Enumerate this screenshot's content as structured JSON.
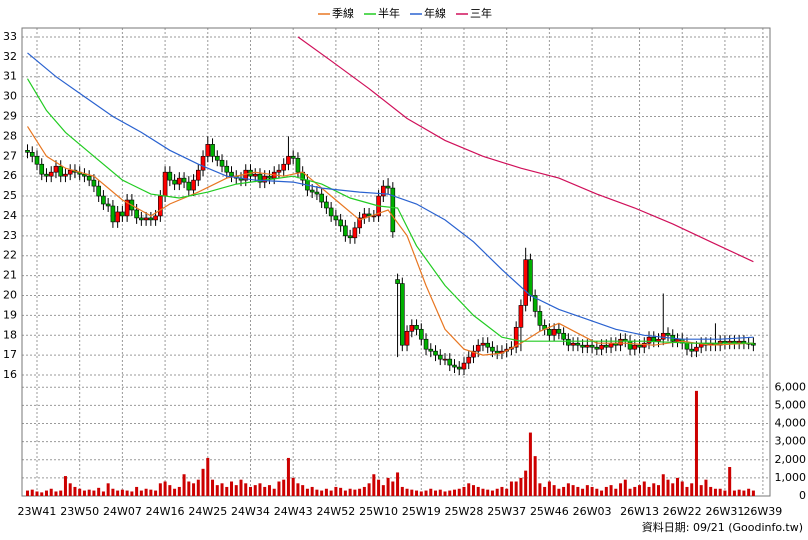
{
  "chart_data": {
    "type": "candlestick",
    "grid": true,
    "legend": "top",
    "annotation": "資料日期: 09/21  (Goodinfo.tw)",
    "xlim": [
      -1.16,
      156.5
    ],
    "xticks": [
      {
        "value": 2,
        "label": "23W41"
      },
      {
        "value": 11,
        "label": "23W50"
      },
      {
        "value": 20,
        "label": "24W07"
      },
      {
        "value": 29,
        "label": "24W16"
      },
      {
        "value": 38,
        "label": "24W25"
      },
      {
        "value": 47,
        "label": "24W34"
      },
      {
        "value": 56,
        "label": "24W43"
      },
      {
        "value": 65,
        "label": "24W52"
      },
      {
        "value": 74,
        "label": "25W10"
      },
      {
        "value": 83,
        "label": "25W19"
      },
      {
        "value": 92,
        "label": "25W28"
      },
      {
        "value": 101,
        "label": "25W37"
      },
      {
        "value": 110,
        "label": "25W46"
      },
      {
        "value": 119,
        "label": "26W03"
      },
      {
        "value": 129,
        "label": "26W13"
      },
      {
        "value": 138,
        "label": "26W22"
      },
      {
        "value": 147,
        "label": "26W31"
      },
      {
        "value": 155,
        "label": "26W39"
      }
    ],
    "ylim": [
      15.75,
      33.45
    ],
    "yticks": [
      16,
      17,
      18,
      19,
      20,
      21,
      22,
      23,
      24,
      25,
      26,
      27,
      28,
      29,
      30,
      31,
      32,
      33
    ],
    "y2lim": [
      0,
      6400
    ],
    "y2ticks": [
      0,
      {
        "value": 1000,
        "label": "1,000"
      },
      {
        "value": 2000,
        "label": "2,000"
      },
      {
        "value": 3000,
        "label": "3,000"
      },
      {
        "value": 4000,
        "label": "4,000"
      },
      {
        "value": 5000,
        "label": "5,000"
      },
      {
        "value": 6000,
        "label": "6,000"
      }
    ],
    "candles": {
      "up_color": "#ff0000",
      "down_color": "#00b000",
      "open": [
        27.3,
        27.2,
        27.0,
        26.6,
        26.1,
        26.0,
        26.2,
        26.5,
        26.0,
        26.1,
        26.3,
        26.2,
        26.1,
        26.0,
        25.8,
        25.5,
        25.0,
        24.6,
        24.5,
        23.7,
        24.2,
        24.0,
        24.8,
        24.3,
        23.9,
        23.8,
        23.9,
        23.8,
        24.0,
        25.0,
        26.2,
        25.8,
        25.6,
        25.9,
        25.7,
        25.3,
        25.8,
        26.3,
        27.0,
        27.6,
        27.0,
        26.8,
        26.5,
        26.2,
        26.0,
        25.9,
        25.8,
        26.3,
        26.0,
        26.1,
        25.7,
        26.0,
        25.9,
        26.2,
        26.3,
        26.6,
        27.0,
        26.9,
        26.2,
        25.8,
        25.3,
        25.2,
        25.1,
        24.7,
        24.4,
        24.0,
        23.8,
        23.5,
        23.0,
        22.9,
        23.4,
        23.9,
        24.1,
        24.0,
        24.0,
        25.0,
        25.5,
        25.4,
        20.8,
        20.6,
        17.5,
        18.2,
        18.5,
        18.3,
        17.8,
        17.3,
        17.2,
        17.0,
        16.8,
        16.8,
        16.5,
        16.4,
        16.3,
        16.6,
        16.9,
        17.2,
        17.5,
        17.6,
        17.4,
        17.2,
        17.1,
        17.2,
        17.3,
        17.4,
        18.4,
        19.5,
        21.8,
        20.0,
        19.2,
        18.5,
        18.3,
        18.0,
        18.3,
        18.1,
        17.8,
        17.5,
        17.6,
        17.5,
        17.4,
        17.5,
        17.4,
        17.3,
        17.5,
        17.4,
        17.6,
        17.5,
        17.8,
        17.7,
        17.3,
        17.5,
        17.4,
        17.6,
        17.9,
        17.7,
        17.8,
        18.1,
        18.0,
        17.7,
        17.8,
        17.6,
        17.3,
        17.2,
        17.4,
        17.6,
        17.5,
        17.6,
        17.5,
        17.7,
        17.6,
        17.7,
        17.6,
        17.7,
        17.6,
        17.6
      ],
      "high": [
        27.6,
        27.5,
        27.3,
        26.9,
        26.4,
        26.5,
        26.8,
        26.8,
        26.4,
        26.6,
        26.6,
        26.5,
        26.4,
        26.3,
        26.1,
        25.8,
        25.3,
        24.9,
        24.8,
        24.5,
        24.5,
        25.1,
        25.1,
        24.6,
        24.2,
        24.2,
        24.2,
        24.3,
        25.3,
        26.5,
        26.5,
        26.1,
        26.2,
        26.2,
        26.0,
        26.1,
        26.6,
        27.3,
        28.0,
        27.9,
        27.3,
        27.1,
        26.8,
        26.5,
        26.3,
        26.2,
        26.6,
        26.6,
        26.4,
        26.4,
        26.3,
        26.3,
        26.5,
        26.6,
        26.9,
        28.0,
        27.3,
        27.2,
        26.5,
        26.1,
        25.6,
        25.5,
        25.4,
        25.0,
        24.7,
        24.3,
        24.1,
        23.8,
        23.3,
        23.7,
        24.2,
        24.4,
        24.4,
        24.3,
        25.3,
        25.8,
        25.9,
        25.7,
        21.1,
        20.9,
        18.5,
        18.8,
        18.8,
        18.6,
        18.1,
        17.6,
        17.5,
        17.3,
        17.1,
        17.1,
        16.8,
        16.7,
        16.9,
        17.2,
        17.5,
        17.8,
        17.9,
        17.9,
        17.7,
        17.5,
        17.5,
        17.6,
        17.7,
        18.7,
        19.8,
        22.4,
        22.1,
        20.3,
        19.5,
        18.8,
        18.6,
        18.6,
        18.6,
        18.4,
        18.1,
        17.9,
        17.9,
        17.8,
        17.8,
        17.8,
        17.7,
        17.8,
        17.8,
        17.9,
        17.9,
        18.1,
        18.1,
        18.0,
        17.8,
        17.8,
        17.9,
        18.2,
        18.2,
        18.1,
        20.1,
        18.4,
        18.3,
        18.1,
        18.1,
        17.9,
        17.6,
        17.7,
        17.9,
        17.9,
        17.9,
        18.6,
        18.0,
        18.0,
        18.0,
        18.0,
        18.0,
        18.0,
        17.9,
        17.9
      ],
      "low": [
        26.9,
        26.7,
        26.3,
        25.8,
        25.7,
        25.7,
        25.9,
        25.7,
        25.7,
        25.8,
        25.9,
        25.8,
        25.7,
        25.5,
        25.2,
        24.7,
        24.3,
        24.2,
        23.4,
        23.4,
        23.7,
        23.7,
        24.0,
        23.6,
        23.5,
        23.5,
        23.5,
        23.5,
        23.7,
        24.7,
        25.5,
        25.3,
        25.3,
        25.4,
        25.0,
        25.0,
        25.5,
        26.0,
        26.7,
        26.7,
        26.5,
        26.2,
        25.9,
        25.7,
        25.6,
        25.5,
        25.5,
        25.7,
        25.7,
        25.4,
        25.4,
        25.6,
        25.6,
        25.9,
        26.0,
        26.3,
        26.6,
        25.9,
        25.5,
        25.0,
        24.9,
        24.8,
        24.4,
        24.1,
        23.7,
        23.5,
        23.2,
        22.7,
        22.6,
        22.6,
        23.1,
        23.6,
        23.7,
        23.7,
        23.7,
        24.7,
        25.1,
        22.9,
        16.9,
        17.2,
        17.2,
        17.9,
        18.0,
        17.5,
        17.0,
        16.9,
        16.7,
        16.5,
        16.5,
        16.2,
        16.1,
        16.0,
        16.0,
        16.3,
        16.6,
        16.9,
        17.2,
        17.1,
        16.9,
        16.8,
        16.8,
        16.9,
        17.0,
        17.1,
        17.2,
        19.2,
        19.7,
        18.9,
        18.2,
        18.0,
        17.7,
        17.7,
        17.8,
        17.5,
        17.2,
        17.2,
        17.2,
        17.1,
        17.1,
        17.1,
        17.0,
        17.0,
        17.1,
        17.1,
        17.2,
        17.2,
        17.4,
        17.0,
        17.0,
        17.1,
        17.1,
        17.3,
        17.4,
        17.4,
        17.5,
        17.7,
        17.4,
        17.4,
        17.3,
        17.0,
        16.9,
        16.9,
        17.1,
        17.2,
        17.2,
        17.2,
        17.2,
        17.3,
        17.3,
        17.3,
        17.3,
        17.3,
        17.3,
        17.2
      ],
      "close": [
        27.2,
        27.0,
        26.6,
        26.1,
        26.0,
        26.2,
        26.5,
        26.0,
        26.1,
        26.3,
        26.2,
        26.1,
        26.0,
        25.8,
        25.5,
        25.0,
        24.6,
        24.5,
        23.7,
        24.2,
        24.0,
        24.8,
        24.3,
        23.9,
        23.8,
        23.9,
        23.8,
        24.0,
        25.0,
        26.2,
        25.8,
        25.6,
        25.9,
        25.7,
        25.3,
        25.8,
        26.3,
        27.0,
        27.6,
        27.0,
        26.8,
        26.5,
        26.2,
        26.0,
        25.9,
        25.8,
        26.3,
        26.0,
        26.1,
        25.7,
        26.0,
        25.9,
        26.2,
        26.3,
        26.6,
        27.0,
        26.9,
        26.2,
        25.8,
        25.3,
        25.2,
        25.1,
        24.7,
        24.4,
        24.0,
        23.8,
        23.5,
        23.0,
        22.9,
        23.4,
        23.9,
        24.1,
        24.0,
        24.0,
        25.0,
        25.5,
        25.4,
        23.2,
        20.6,
        17.5,
        18.2,
        18.5,
        18.3,
        17.8,
        17.3,
        17.2,
        17.0,
        16.8,
        16.8,
        16.5,
        16.4,
        16.3,
        16.6,
        16.9,
        17.2,
        17.5,
        17.6,
        17.4,
        17.2,
        17.1,
        17.2,
        17.3,
        17.4,
        18.4,
        19.5,
        21.8,
        20.0,
        19.2,
        18.5,
        18.3,
        18.0,
        18.3,
        18.1,
        17.8,
        17.5,
        17.6,
        17.5,
        17.4,
        17.5,
        17.4,
        17.3,
        17.5,
        17.4,
        17.6,
        17.5,
        17.8,
        17.7,
        17.3,
        17.5,
        17.4,
        17.6,
        17.9,
        17.7,
        17.8,
        18.1,
        18.0,
        17.7,
        17.8,
        17.6,
        17.3,
        17.2,
        17.4,
        17.6,
        17.5,
        17.6,
        17.5,
        17.7,
        17.6,
        17.7,
        17.6,
        17.7,
        17.6,
        17.6,
        17.5
      ]
    },
    "volume": {
      "axis": "y2",
      "color": "#cc0000",
      "values": [
        300,
        350,
        250,
        200,
        300,
        400,
        250,
        300,
        1100,
        700,
        500,
        400,
        300,
        350,
        300,
        450,
        250,
        700,
        400,
        300,
        350,
        300,
        250,
        500,
        300,
        400,
        350,
        300,
        700,
        800,
        600,
        400,
        500,
        1200,
        800,
        700,
        900,
        1500,
        2100,
        900,
        600,
        700,
        500,
        800,
        600,
        900,
        700,
        500,
        600,
        700,
        500,
        600,
        400,
        800,
        900,
        2100,
        1000,
        700,
        600,
        400,
        500,
        350,
        300,
        400,
        300,
        500,
        450,
        300,
        400,
        350,
        400,
        500,
        700,
        1200,
        900,
        600,
        1000,
        800,
        1300,
        500,
        400,
        350,
        300,
        250,
        300,
        400,
        300,
        350,
        250,
        300,
        350,
        400,
        500,
        700,
        600,
        500,
        400,
        350,
        300,
        400,
        500,
        400,
        800,
        800,
        1000,
        1400,
        3500,
        2200,
        700,
        500,
        800,
        600,
        400,
        500,
        700,
        600,
        500,
        400,
        600,
        500,
        400,
        300,
        500,
        600,
        400,
        700,
        900,
        400,
        500,
        600,
        800,
        500,
        700,
        600,
        1200,
        900,
        700,
        1000,
        800,
        500,
        700,
        5800,
        600,
        900,
        500,
        400,
        400,
        300,
        1600,
        300,
        350,
        300,
        400,
        300
      ]
    },
    "series": [
      {
        "name": "季線",
        "color": "#e87722",
        "x": [
          0,
          4,
          8,
          14,
          20,
          26,
          30,
          36,
          42,
          48,
          54,
          58,
          64,
          70,
          76,
          80,
          84,
          88,
          92,
          96,
          100,
          104,
          108,
          112,
          116,
          120,
          126,
          132,
          138,
          144,
          153
        ],
        "values": [
          28.5,
          27.0,
          26.4,
          26.0,
          24.8,
          24.0,
          24.6,
          25.2,
          25.9,
          26.2,
          26.0,
          26.2,
          25.0,
          23.8,
          24.3,
          23.0,
          20.5,
          18.3,
          17.3,
          17.0,
          17.1,
          17.6,
          18.2,
          18.6,
          18.1,
          17.6,
          17.6,
          17.5,
          17.7,
          17.5,
          17.6
        ]
      },
      {
        "name": "半年",
        "color": "#22cc22",
        "x": [
          0,
          4,
          8,
          14,
          20,
          26,
          32,
          38,
          44,
          50,
          56,
          62,
          68,
          74,
          78,
          82,
          88,
          94,
          100,
          104,
          110,
          120,
          130,
          140,
          153
        ],
        "values": [
          30.9,
          29.3,
          28.2,
          27.0,
          25.8,
          25.1,
          24.9,
          25.2,
          25.6,
          25.8,
          26.0,
          25.6,
          24.9,
          24.5,
          24.4,
          22.5,
          20.5,
          19.0,
          17.9,
          17.7,
          17.7,
          17.7,
          17.7,
          17.6,
          17.6
        ]
      },
      {
        "name": "年線",
        "color": "#2a62d0",
        "x": [
          0,
          6,
          12,
          18,
          24,
          30,
          36,
          42,
          48,
          56,
          62,
          70,
          76,
          82,
          88,
          94,
          100,
          106,
          112,
          118,
          124,
          130,
          138,
          146,
          153
        ],
        "values": [
          32.2,
          31.0,
          30.0,
          29.0,
          28.2,
          27.3,
          26.6,
          26.0,
          25.8,
          25.7,
          25.4,
          25.2,
          25.1,
          24.6,
          23.8,
          22.7,
          21.3,
          20.0,
          19.3,
          18.8,
          18.3,
          18.0,
          17.8,
          17.8,
          17.9
        ]
      },
      {
        "name": "三年",
        "color": "#d0105a",
        "x": [
          57,
          64,
          72,
          80,
          88,
          96,
          104,
          112,
          120,
          128,
          136,
          144,
          153
        ],
        "values": [
          33.0,
          31.8,
          30.4,
          28.9,
          27.8,
          27.0,
          26.4,
          25.9,
          25.1,
          24.4,
          23.6,
          22.7,
          21.7
        ]
      }
    ]
  }
}
